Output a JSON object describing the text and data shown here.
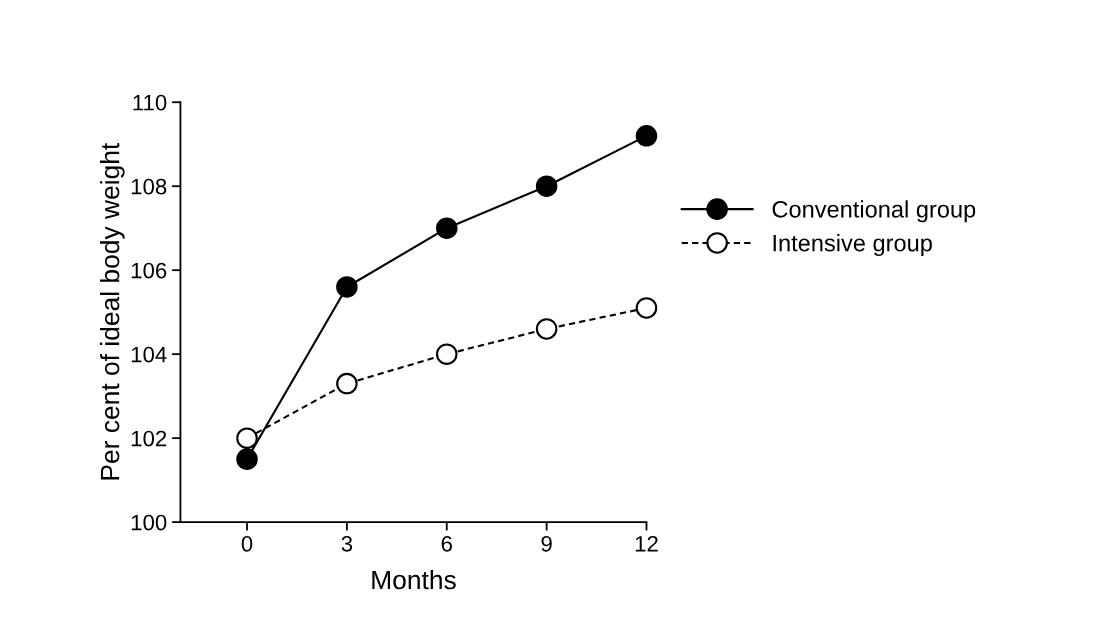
{
  "chart_data": {
    "type": "line",
    "xlabel": "Months",
    "ylabel": "Per cent of ideal body weight",
    "x": [
      0,
      3,
      6,
      9,
      12
    ],
    "series": [
      {
        "name": "Conventional group",
        "color": "#000000",
        "values": [
          101.5,
          105.6,
          107.0,
          108.0,
          109.2
        ],
        "marker": "circle",
        "line_style": "solid"
      },
      {
        "name": "Intensive group",
        "color": "#000000",
        "values": [
          102.0,
          103.3,
          104.0,
          104.6,
          105.1
        ],
        "marker": "circle",
        "line_style": "dashed"
      }
    ],
    "xlim": [
      -2,
      12
    ],
    "xticks": [
      0,
      3,
      6,
      9,
      12
    ],
    "ylim": [
      100,
      110
    ],
    "yticks": [
      100,
      102,
      104,
      106,
      108,
      110
    ],
    "grid": false,
    "legend": "right"
  }
}
